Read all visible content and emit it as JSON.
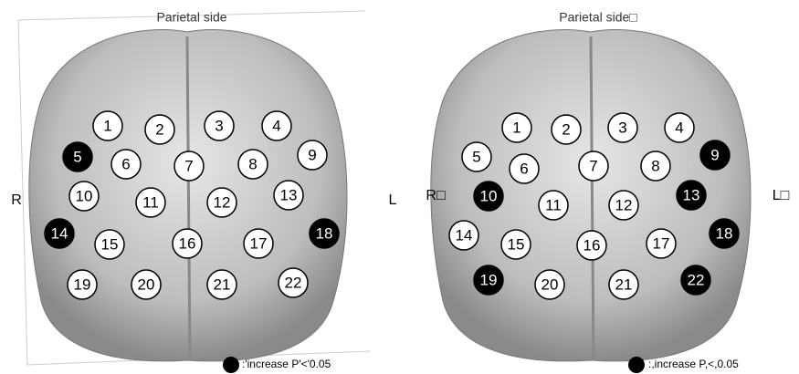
{
  "panels": [
    {
      "title": "Parietal side",
      "right_side_label": "R",
      "left_side_label": "L",
      "legend": ":'increase P'<'0.05",
      "channels": [
        {
          "label": "1",
          "significant": false
        },
        {
          "label": "2",
          "significant": false
        },
        {
          "label": "3",
          "significant": false
        },
        {
          "label": "4",
          "significant": false
        },
        {
          "label": "5",
          "significant": true
        },
        {
          "label": "6",
          "significant": false
        },
        {
          "label": "7",
          "significant": false
        },
        {
          "label": "8",
          "significant": false
        },
        {
          "label": "9",
          "significant": false
        },
        {
          "label": "10",
          "significant": false
        },
        {
          "label": "11",
          "significant": false
        },
        {
          "label": "12",
          "significant": false
        },
        {
          "label": "13",
          "significant": false
        },
        {
          "label": "14",
          "significant": true
        },
        {
          "label": "15",
          "significant": false
        },
        {
          "label": "16",
          "significant": false
        },
        {
          "label": "17",
          "significant": false
        },
        {
          "label": "18",
          "significant": true
        },
        {
          "label": "19",
          "significant": false
        },
        {
          "label": "20",
          "significant": false
        },
        {
          "label": "21",
          "significant": false
        },
        {
          "label": "22",
          "significant": false
        }
      ]
    },
    {
      "title": "Parietal side□",
      "right_side_label": "R□",
      "left_side_label": "L□",
      "legend": ":,increase P,<,0.05",
      "channels": [
        {
          "label": "1",
          "significant": false
        },
        {
          "label": "2",
          "significant": false
        },
        {
          "label": "3",
          "significant": false
        },
        {
          "label": "4",
          "significant": false
        },
        {
          "label": "5",
          "significant": false
        },
        {
          "label": "6",
          "significant": false
        },
        {
          "label": "7",
          "significant": false
        },
        {
          "label": "8",
          "significant": false
        },
        {
          "label": "9",
          "significant": true
        },
        {
          "label": "10",
          "significant": true
        },
        {
          "label": "11",
          "significant": false
        },
        {
          "label": "12",
          "significant": false
        },
        {
          "label": "13",
          "significant": true
        },
        {
          "label": "14",
          "significant": false
        },
        {
          "label": "15",
          "significant": false
        },
        {
          "label": "16",
          "significant": false
        },
        {
          "label": "17",
          "significant": false
        },
        {
          "label": "18",
          "significant": true
        },
        {
          "label": "19",
          "significant": true
        },
        {
          "label": "20",
          "significant": false
        },
        {
          "label": "21",
          "significant": false
        },
        {
          "label": "22",
          "significant": true
        }
      ]
    }
  ]
}
